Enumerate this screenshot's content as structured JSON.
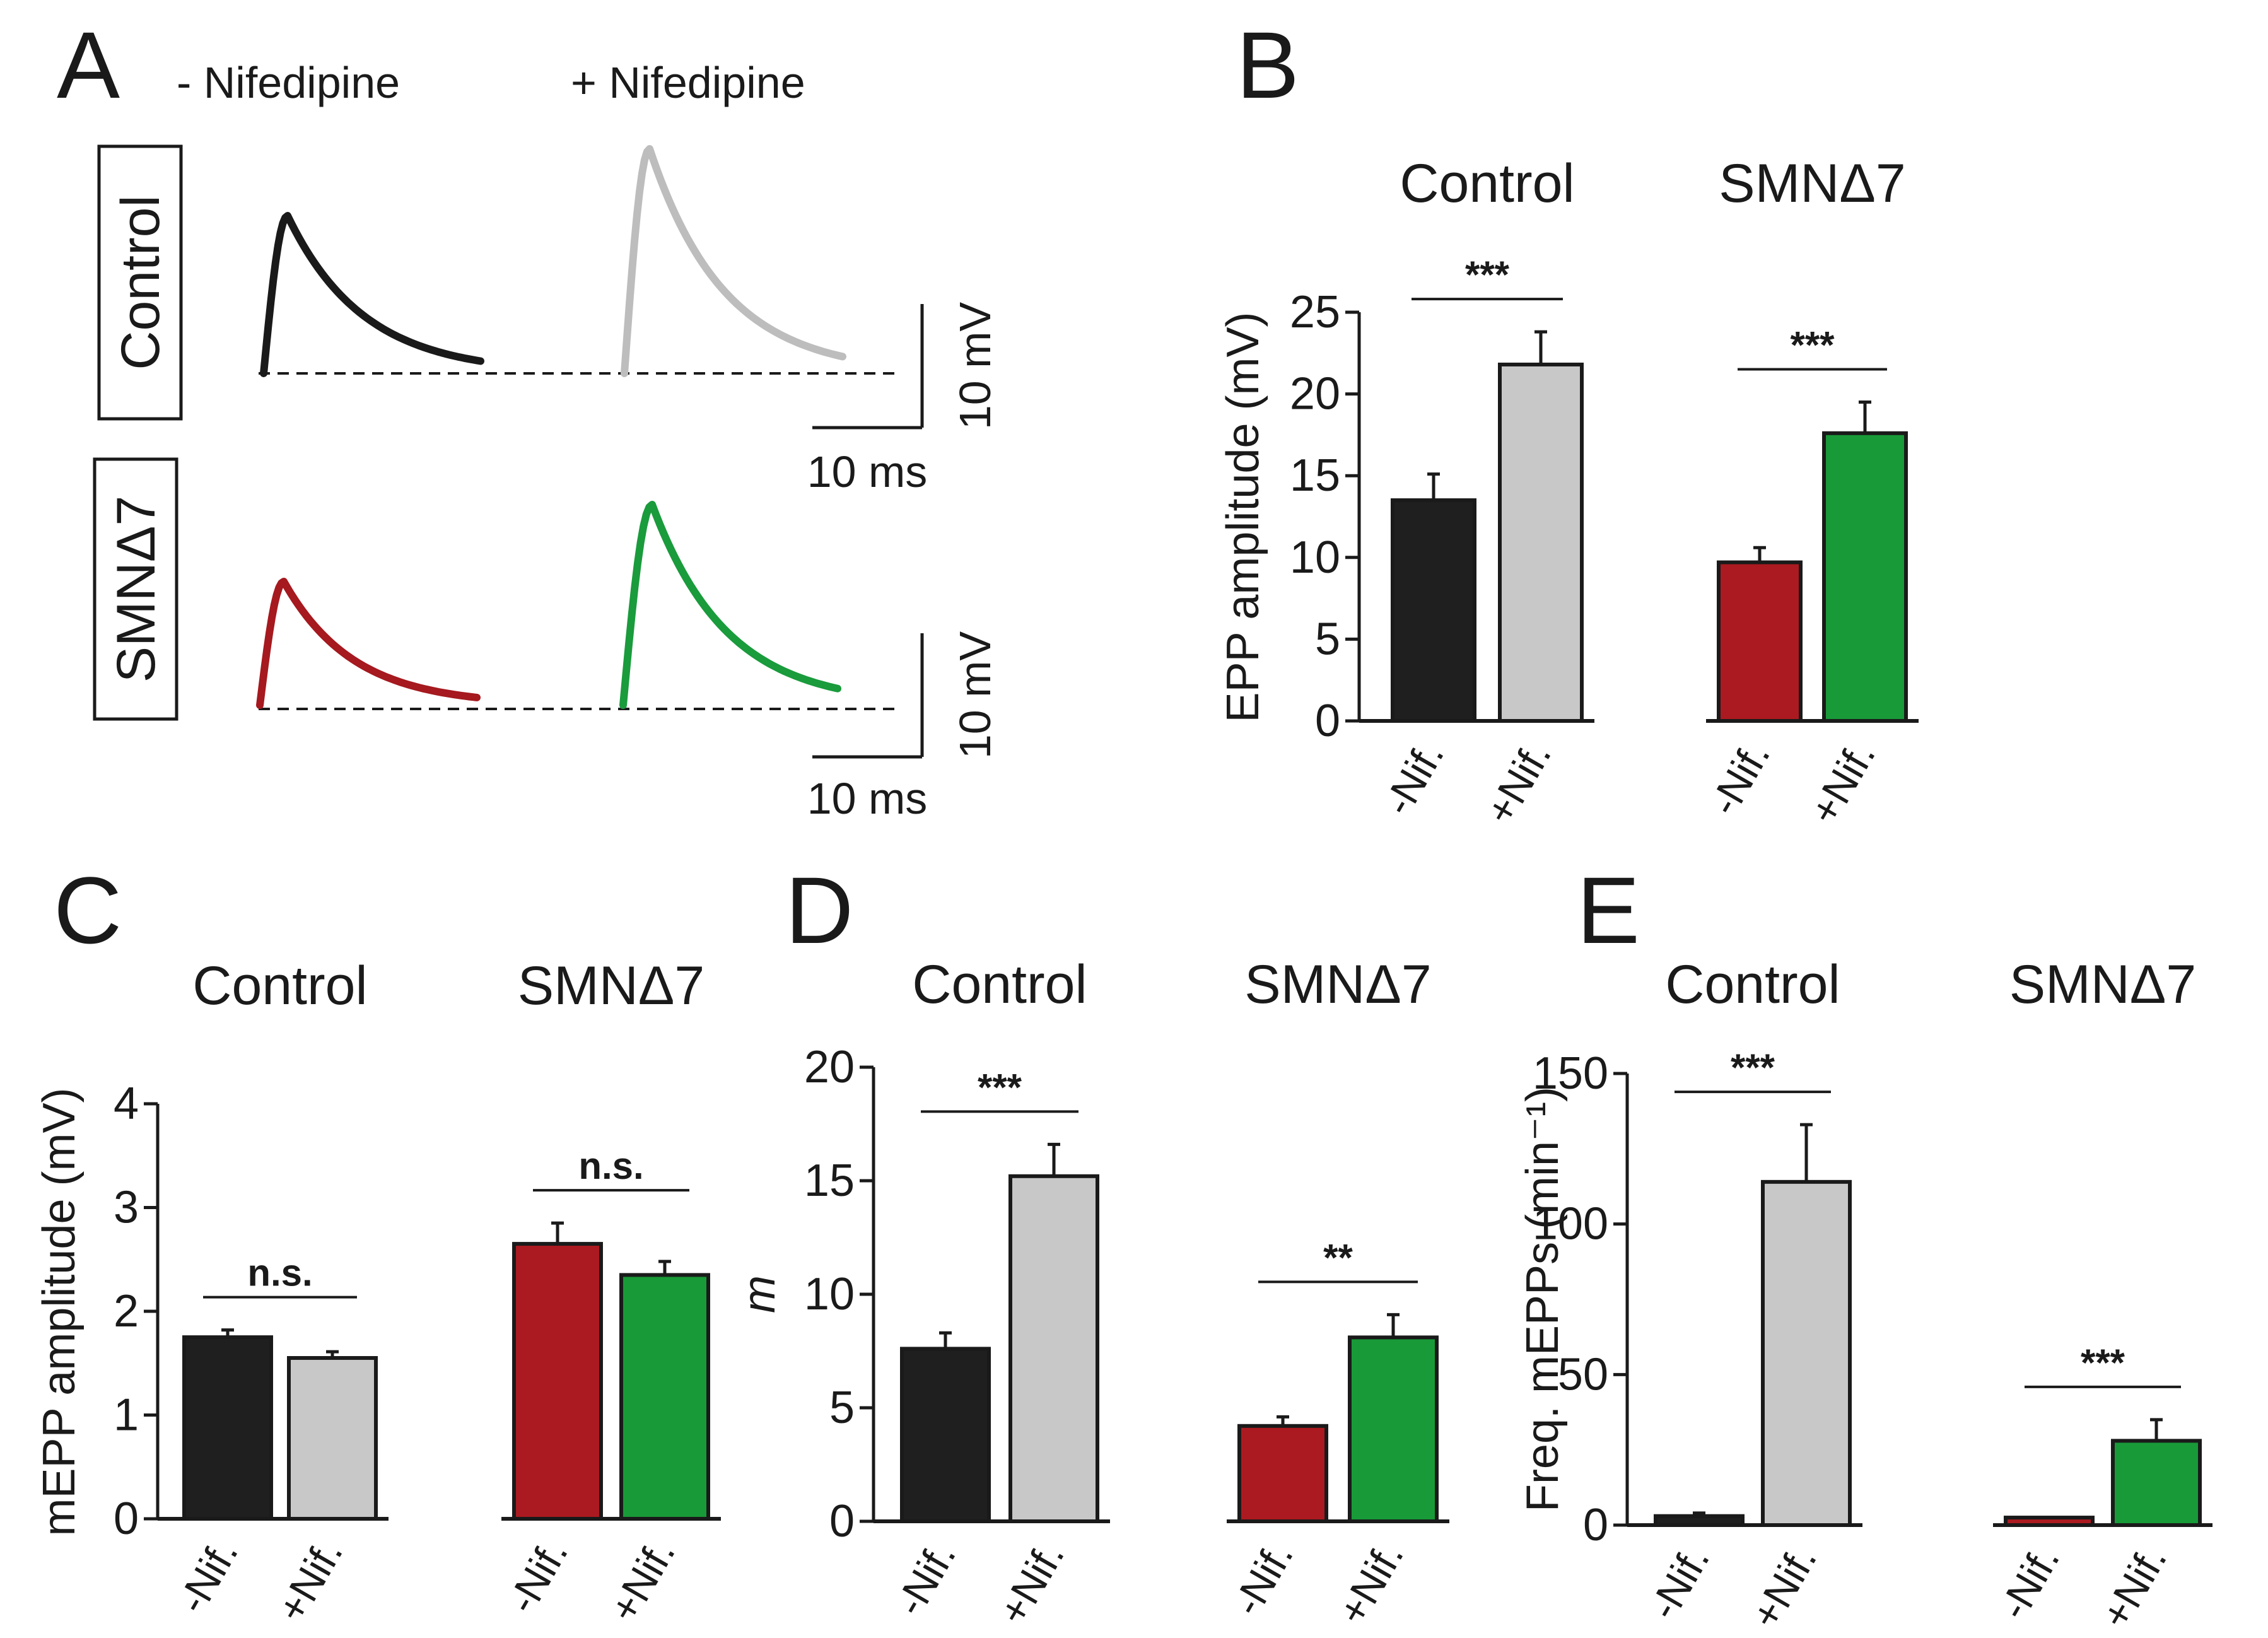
{
  "panels": {
    "A": "A",
    "B": "B",
    "C": "C",
    "D": "D",
    "E": "E"
  },
  "panelA": {
    "minus_label": "- Nifedipine",
    "plus_label": "+ Nifedipine",
    "row_labels": [
      "Control",
      "SMNΔ7"
    ],
    "scale_mv": "10 mV",
    "scale_ms": "10 ms",
    "trace_colors": {
      "control_minus": "#1a1a1a",
      "control_plus": "#bdbdbd",
      "smn_minus": "#a5191f",
      "smn_plus": "#1a9b3c"
    }
  },
  "colors": {
    "control_minus": "#1f1f1f",
    "control_plus": "#c8c8c8",
    "smn_minus": "#ab1a20",
    "smn_plus": "#189a38"
  },
  "chart_data": [
    {
      "id": "B",
      "type": "bar",
      "ylabel": "EPP amplitude (mV)",
      "ylim": [
        0,
        25
      ],
      "yticks": [
        "0",
        "5",
        "10",
        "15",
        "20",
        "25"
      ],
      "groups": [
        {
          "name": "Control",
          "categories": [
            "-Nif.",
            "+Nif."
          ],
          "values": [
            13.5,
            21.8
          ],
          "errors": [
            1.6,
            2.0
          ],
          "sig": "***"
        },
        {
          "name": "SMNΔ7",
          "categories": [
            "-Nif.",
            "+Nif."
          ],
          "values": [
            9.7,
            17.6
          ],
          "errors": [
            0.9,
            1.9
          ],
          "sig": "***"
        }
      ]
    },
    {
      "id": "C",
      "type": "bar",
      "ylabel": "mEPP amplitude (mV)",
      "ylim": [
        0,
        4
      ],
      "yticks": [
        "0",
        "1",
        "2",
        "3",
        "4"
      ],
      "groups": [
        {
          "name": "Control",
          "categories": [
            "-Nif.",
            "+Nif."
          ],
          "values": [
            1.75,
            1.55
          ],
          "errors": [
            0.07,
            0.06
          ],
          "sig": "n.s."
        },
        {
          "name": "SMNΔ7",
          "categories": [
            "-Nif.",
            "+Nif."
          ],
          "values": [
            2.65,
            2.35
          ],
          "errors": [
            0.2,
            0.13
          ],
          "sig": "n.s."
        }
      ]
    },
    {
      "id": "D",
      "type": "bar",
      "ylabel": "m",
      "ylim": [
        0,
        20
      ],
      "yticks": [
        "0",
        "5",
        "10",
        "15",
        "20"
      ],
      "groups": [
        {
          "name": "Control",
          "categories": [
            "-Nif.",
            "+Nif."
          ],
          "values": [
            7.6,
            15.2
          ],
          "errors": [
            0.7,
            1.4
          ],
          "sig": "***"
        },
        {
          "name": "SMNΔ7",
          "categories": [
            "-Nif.",
            "+Nif."
          ],
          "values": [
            4.2,
            8.1
          ],
          "errors": [
            0.4,
            1.0
          ],
          "sig": "**"
        }
      ]
    },
    {
      "id": "E",
      "type": "bar",
      "ylabel": "Freq. mEPPs (min⁻¹)",
      "ylim": [
        0,
        150
      ],
      "yticks": [
        "0",
        "50",
        "100",
        "150"
      ],
      "groups": [
        {
          "name": "Control",
          "categories": [
            "-Nif.",
            "+Nif."
          ],
          "values": [
            3,
            114
          ],
          "errors": [
            1,
            19
          ],
          "sig": "***"
        },
        {
          "name": "SMNΔ7",
          "categories": [
            "-Nif.",
            "+Nif."
          ],
          "values": [
            2.5,
            28
          ],
          "errors": [
            0,
            7
          ],
          "sig": "***"
        }
      ]
    }
  ]
}
